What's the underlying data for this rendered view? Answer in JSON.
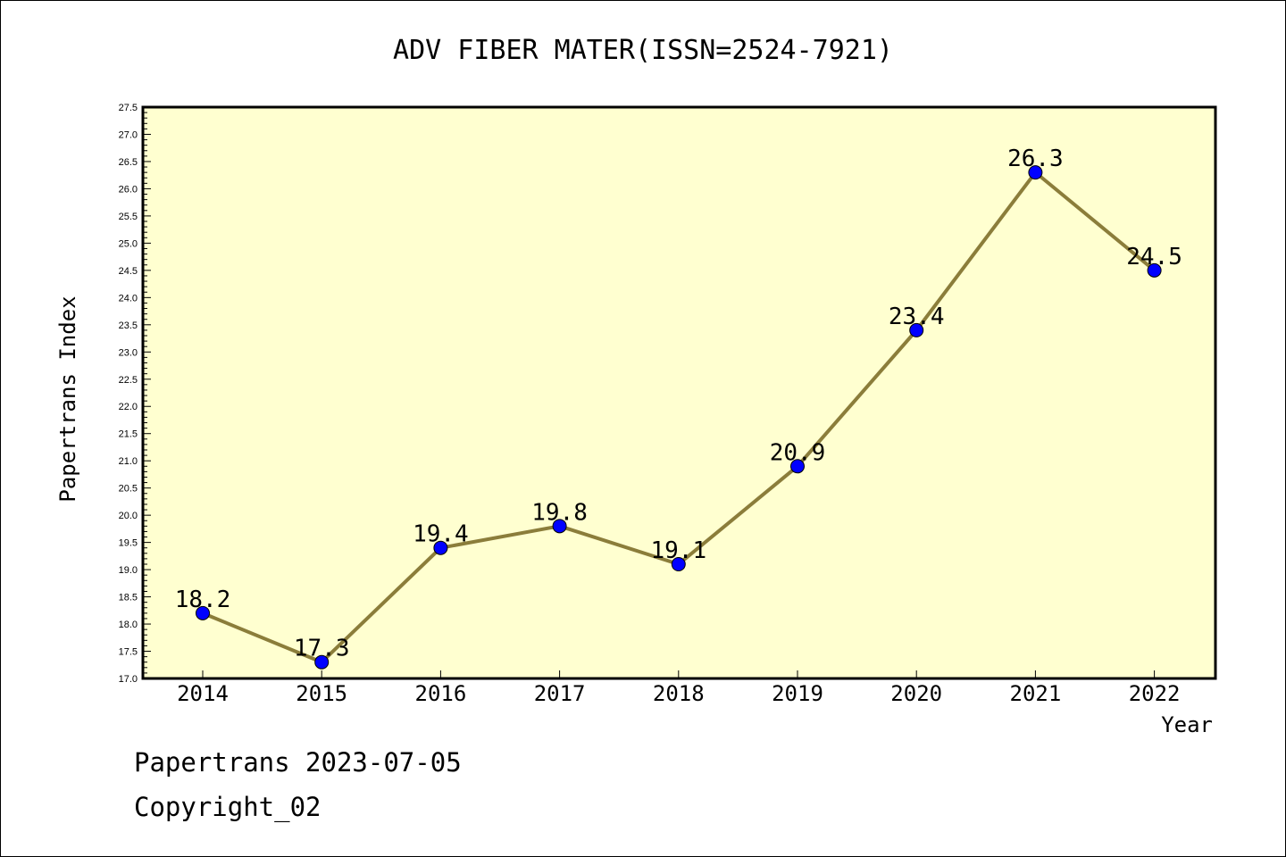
{
  "chart_data": {
    "type": "line",
    "title": "ADV FIBER MATER(ISSN=2524-7921)",
    "xlabel": "Year",
    "ylabel": "Papertrans Index",
    "categories": [
      "2014",
      "2015",
      "2016",
      "2017",
      "2018",
      "2019",
      "2020",
      "2021",
      "2022"
    ],
    "values": [
      18.2,
      17.3,
      19.4,
      19.8,
      19.1,
      20.9,
      23.4,
      26.3,
      24.5
    ],
    "data_labels": [
      "18.2",
      "17.3",
      "19.4",
      "19.8",
      "19.1",
      "20.9",
      "23.4",
      "26.3",
      "24.5"
    ],
    "ylim": [
      17.0,
      27.5
    ],
    "yticks": [
      "17.0",
      "17.5",
      "18.0",
      "18.5",
      "19.0",
      "19.5",
      "20.0",
      "20.5",
      "21.0",
      "21.5",
      "22.0",
      "22.5",
      "23.0",
      "23.5",
      "24.0",
      "24.5",
      "25.0",
      "25.5",
      "26.0",
      "26.5",
      "27.0",
      "27.5"
    ],
    "grid": false,
    "colors": {
      "plot_background": "#ffffd0",
      "line": "#8b7d3a",
      "marker": "#0000ff"
    }
  },
  "footer": {
    "line1": "Papertrans 2023-07-05",
    "line2": "Copyright_02"
  }
}
